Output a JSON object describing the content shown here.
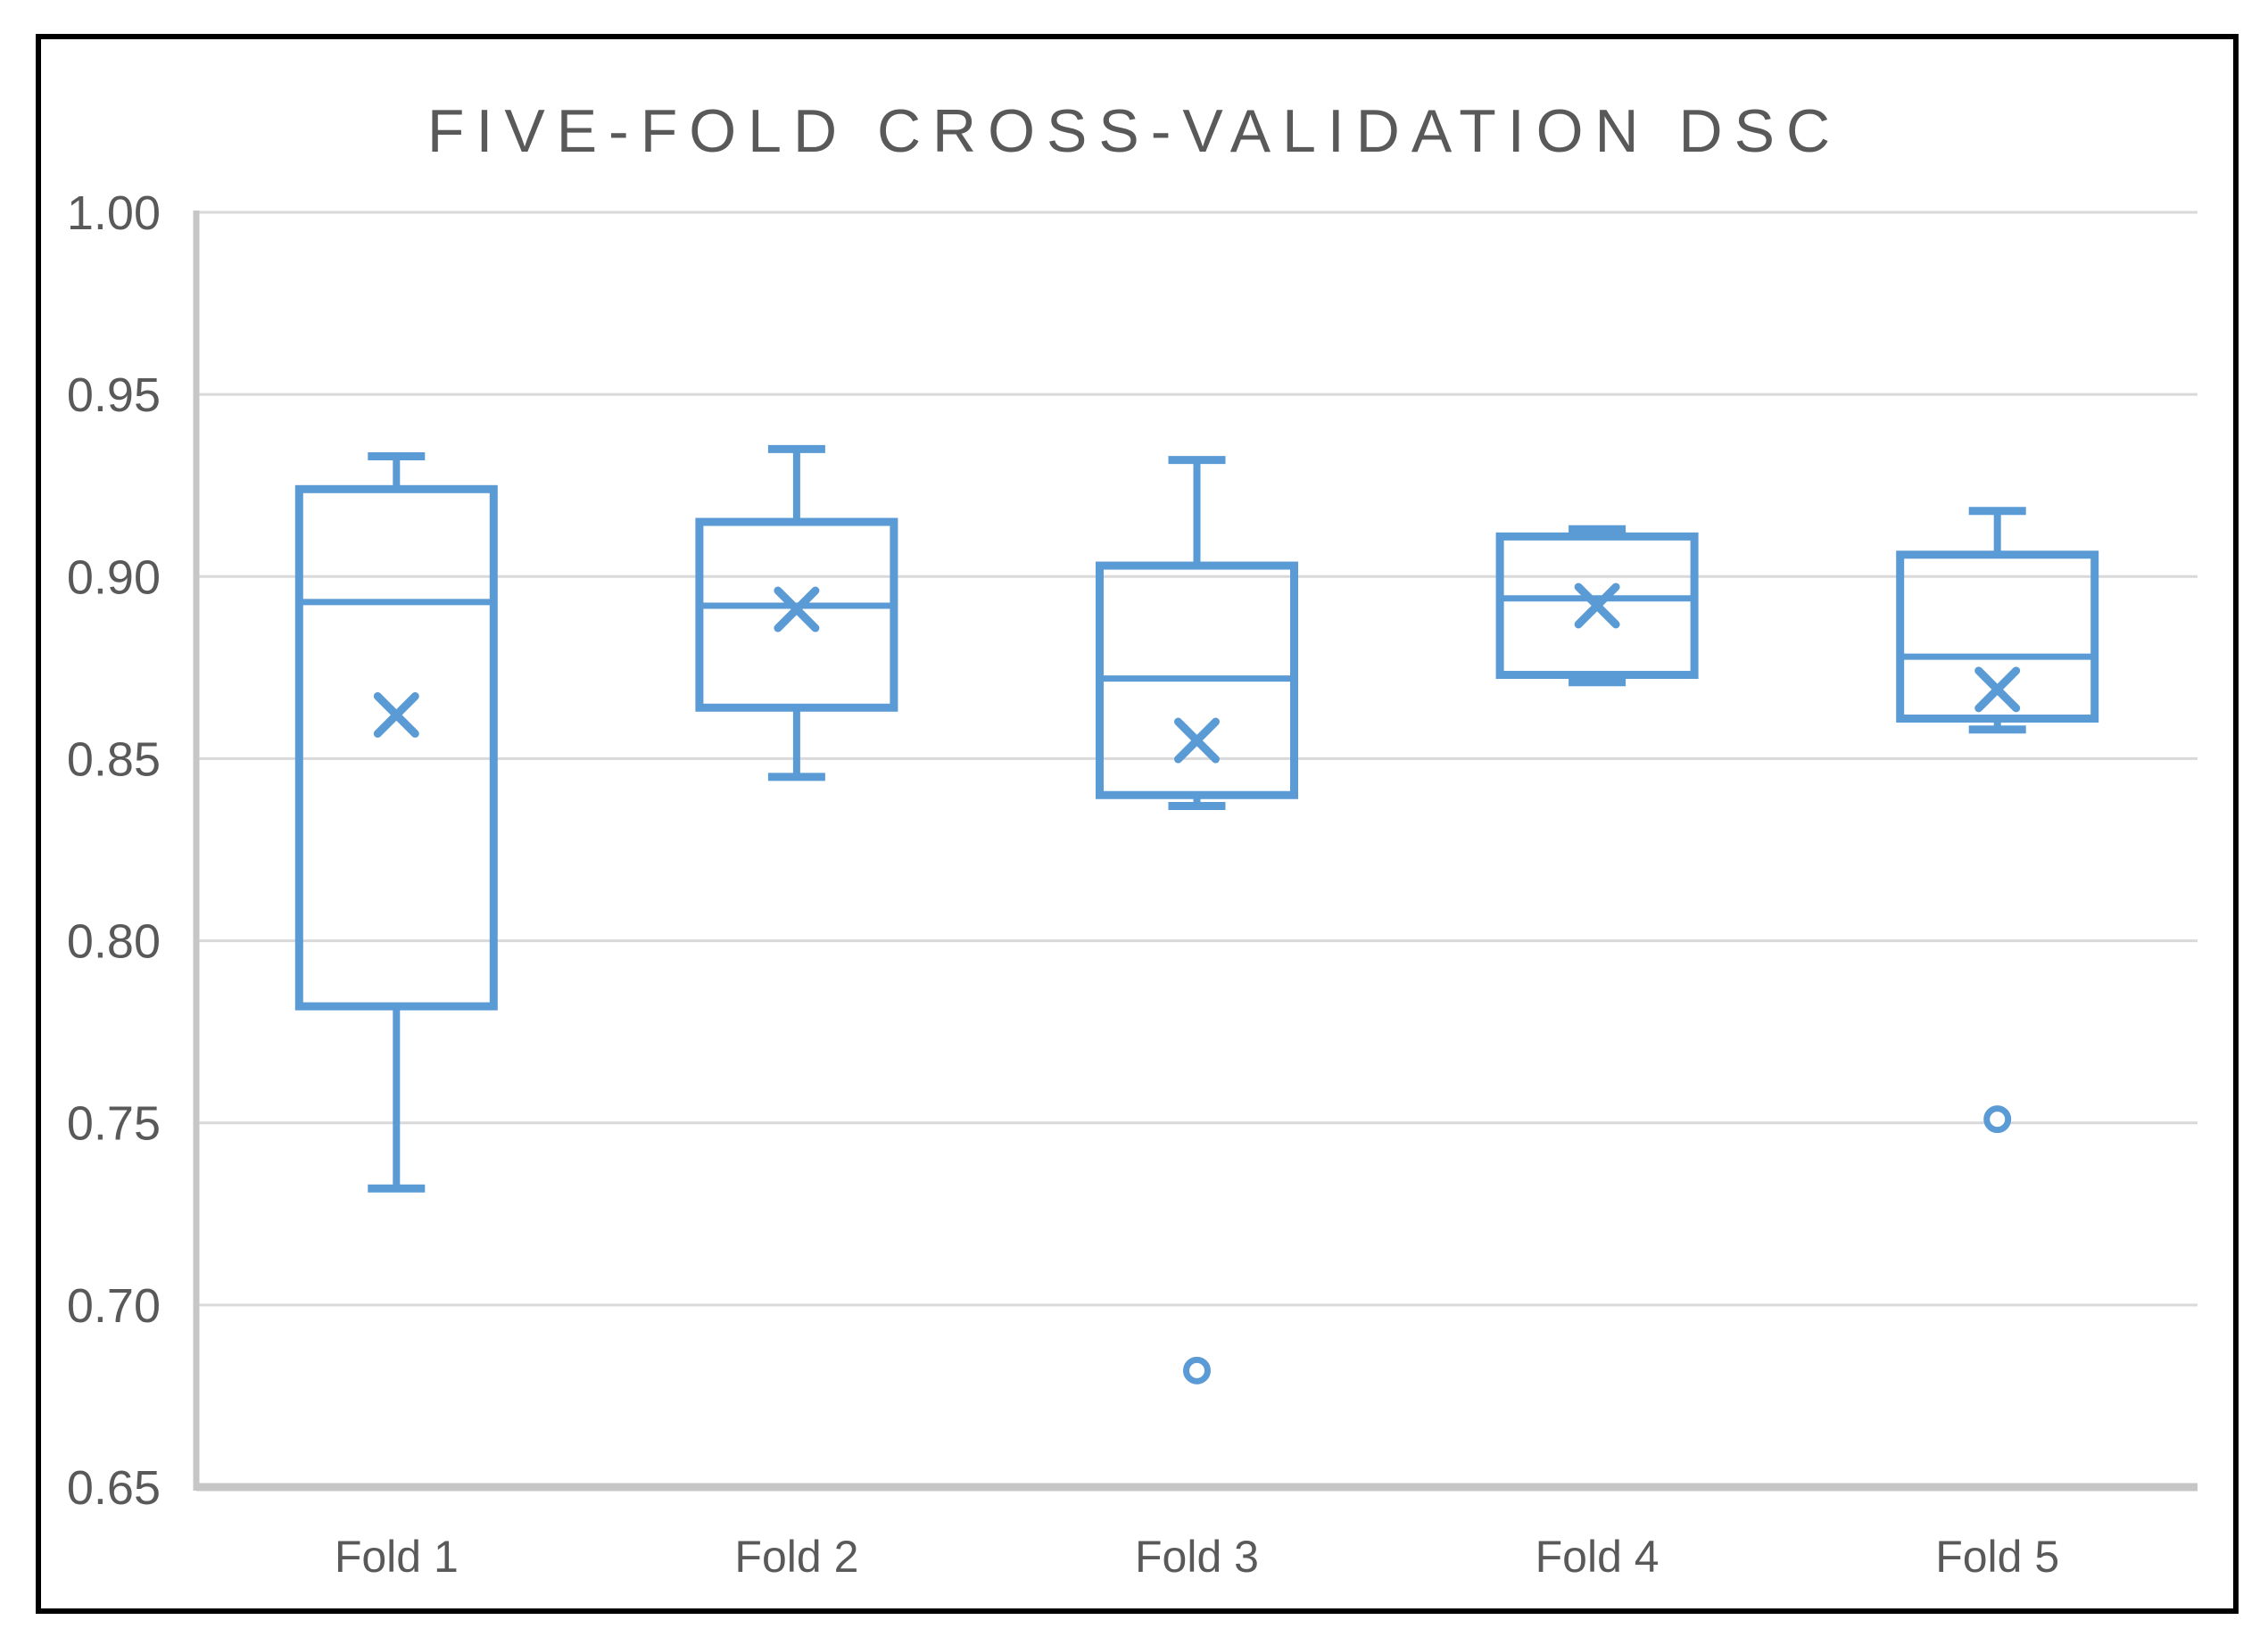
{
  "title": "FIVE-FOLD CROSS-VALIDATION DSC",
  "colors": {
    "series_blue": "#5B9BD5",
    "gridline": "#D9D9D9",
    "axis_line": "#C6C6C6",
    "text_gray": "#595959",
    "frame_border": "#000000",
    "background": "#FFFFFF"
  },
  "chart_data": {
    "type": "boxplot",
    "title": "FIVE-FOLD CROSS-VALIDATION DSC",
    "categories": [
      "Fold 1",
      "Fold 2",
      "Fold 3",
      "Fold 4",
      "Fold 5"
    ],
    "series": [
      {
        "name": "Fold 1",
        "whisker_low": 0.732,
        "q1": 0.782,
        "median": 0.893,
        "q3": 0.924,
        "whisker_high": 0.933,
        "mean": 0.862,
        "outliers": []
      },
      {
        "name": "Fold 2",
        "whisker_low": 0.845,
        "q1": 0.864,
        "median": 0.892,
        "q3": 0.915,
        "whisker_high": 0.935,
        "mean": 0.891,
        "outliers": []
      },
      {
        "name": "Fold 3",
        "whisker_low": 0.837,
        "q1": 0.84,
        "median": 0.872,
        "q3": 0.903,
        "whisker_high": 0.932,
        "mean": 0.855,
        "outliers": [
          0.682
        ]
      },
      {
        "name": "Fold 4",
        "whisker_low": 0.871,
        "q1": 0.873,
        "median": 0.894,
        "q3": 0.911,
        "whisker_high": 0.913,
        "mean": 0.892,
        "outliers": []
      },
      {
        "name": "Fold 5",
        "whisker_low": 0.858,
        "q1": 0.861,
        "median": 0.878,
        "q3": 0.906,
        "whisker_high": 0.918,
        "mean": 0.869,
        "outliers": [
          0.751
        ]
      }
    ],
    "xlabel": "",
    "ylabel": "",
    "ylim": [
      0.65,
      1.0
    ],
    "y_tick_values": [
      1.0,
      0.95,
      0.9,
      0.85,
      0.8,
      0.75,
      0.7,
      0.65
    ],
    "y_tick_labels": [
      "1.00",
      "0.95",
      "0.90",
      "0.85",
      "0.80",
      "0.75",
      "0.70",
      "0.65"
    ],
    "grid": "horizontal",
    "legend": "none",
    "mean_marker": "x",
    "outlier_marker": "circle"
  }
}
